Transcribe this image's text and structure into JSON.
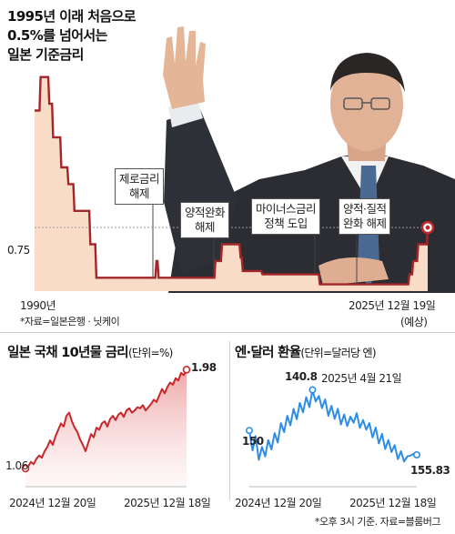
{
  "title": {
    "lines": [
      "1995년 이래 처음으로",
      "0.5%를 넘어서는",
      "일본 기준금리"
    ]
  },
  "colors": {
    "policy_line": "#a3262a",
    "policy_fill": "#f8dcc8",
    "jgb_line": "#c8282b",
    "fx_line": "#2d8de6",
    "marker_ring": "#c0282c"
  },
  "chart_data": [
    {
      "id": "policy-rate",
      "type": "area",
      "title": "1995년 이래 처음으로 0.5%를 넘어서는 일본 기준금리",
      "y_ref": {
        "value": 0.75,
        "label": "0.75"
      },
      "ylim": [
        -0.2,
        3.2
      ],
      "x_start_label": "1990년",
      "x_end_label": "2025년 12월 19일",
      "x_end_note": "(예상)",
      "source": "*자료=일본은행 · 닛케이",
      "x": [
        1990.0,
        1990.45,
        1990.55,
        1991.25,
        1991.35,
        1991.6,
        1991.7,
        1992.35,
        1992.45,
        1993.0,
        1993.1,
        1993.55,
        1993.65,
        1995.0,
        1995.1,
        1995.55,
        1995.65,
        2001.05,
        2001.15,
        2001.25,
        2001.35,
        2006.45,
        2006.55,
        2007.05,
        2007.15,
        2008.75,
        2008.85,
        2008.95,
        2009.05,
        2010.75,
        2010.85,
        2016.0,
        2016.1,
        2024.2,
        2024.3,
        2024.55,
        2024.65,
        2025.0,
        2025.1,
        2025.9,
        2025.97
      ],
      "y": [
        2.5,
        2.5,
        3.0,
        3.0,
        2.6,
        2.6,
        2.1,
        2.1,
        1.65,
        1.65,
        1.4,
        1.4,
        1.0,
        1.0,
        0.5,
        0.5,
        0.0,
        0.0,
        0.25,
        0.25,
        0.0,
        0.0,
        0.25,
        0.25,
        0.5,
        0.5,
        0.3,
        0.3,
        0.1,
        0.1,
        0.05,
        0.05,
        -0.1,
        -0.1,
        0.05,
        0.05,
        0.25,
        0.25,
        0.5,
        0.5,
        0.75
      ],
      "annotations": [
        {
          "text": [
            "제로금리",
            "해제"
          ],
          "x": 2000.6
        },
        {
          "text": [
            "양적완화",
            "해제"
          ],
          "x": 2006.0
        },
        {
          "text": [
            "마이너스금리",
            "정책 도입"
          ],
          "x": 2016.0
        },
        {
          "text": [
            "양적·질적",
            "완화 해제"
          ],
          "x": 2024.2
        }
      ]
    },
    {
      "id": "jgb-10y",
      "type": "area",
      "title": "일본 국채 10년물 금리",
      "unit": "(단위=%)",
      "x_start_label": "2024년 12월 20일",
      "x_end_label": "2025년 12월 18일",
      "start_value": 1.06,
      "end_value": 1.98,
      "ylim": [
        1.0,
        2.0
      ],
      "values": [
        1.06,
        1.08,
        1.12,
        1.1,
        1.15,
        1.18,
        1.16,
        1.22,
        1.26,
        1.32,
        1.28,
        1.36,
        1.42,
        1.48,
        1.45,
        1.55,
        1.58,
        1.5,
        1.44,
        1.4,
        1.33,
        1.28,
        1.22,
        1.3,
        1.38,
        1.35,
        1.44,
        1.42,
        1.48,
        1.5,
        1.45,
        1.52,
        1.55,
        1.51,
        1.56,
        1.58,
        1.54,
        1.6,
        1.62,
        1.58,
        1.6,
        1.63,
        1.62,
        1.65,
        1.6,
        1.63,
        1.66,
        1.7,
        1.68,
        1.74,
        1.8,
        1.76,
        1.82,
        1.86,
        1.84,
        1.9,
        1.88,
        1.95,
        1.93,
        1.98
      ]
    },
    {
      "id": "yen-dollar",
      "type": "line",
      "title": "엔·달러 환율",
      "unit": "(단위=달러당 엔)",
      "peak_value": 140.8,
      "peak_label": "2025년 4월 21일",
      "x_start_label": "2024년 12월 20일",
      "x_end_label": "2025년 12월 18일",
      "start_value": 150,
      "end_value": 155.83,
      "ylim": [
        139.0,
        159.0
      ],
      "values": [
        150.2,
        154.8,
        151.5,
        157.0,
        154.0,
        156.2,
        152.4,
        154.6,
        150.8,
        153.0,
        148.5,
        150.6,
        146.8,
        149.0,
        145.2,
        147.6,
        143.8,
        146.0,
        142.5,
        144.8,
        140.8,
        143.5,
        142.2,
        145.0,
        143.0,
        146.8,
        144.5,
        147.5,
        145.2,
        148.8,
        146.5,
        149.2,
        147.0,
        148.4,
        146.2,
        149.6,
        147.8,
        150.0,
        148.5,
        151.8,
        149.5,
        153.2,
        151.0,
        154.5,
        152.4,
        155.2,
        153.6,
        156.8,
        155.0,
        157.4,
        156.2,
        156.0,
        155.6,
        155.83
      ]
    }
  ],
  "footnote": "*오후 3시 기준. 자료=블룸버그"
}
